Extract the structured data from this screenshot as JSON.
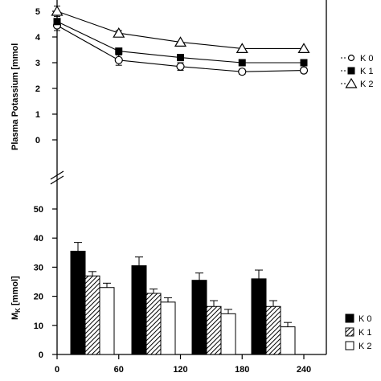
{
  "chart_data": [
    {
      "type": "line",
      "ylabel": "Plasma Potassium [mmol",
      "ylim": [
        0,
        5
      ],
      "yticks": [
        "0",
        "1",
        "2",
        "3",
        "4",
        "5"
      ],
      "x": [
        0,
        60,
        120,
        180,
        240
      ],
      "series": [
        {
          "name": "K 0",
          "marker": "circle-open",
          "values": [
            4.45,
            3.1,
            2.85,
            2.65,
            2.7
          ],
          "errors": [
            0.2,
            0.2,
            0.15,
            0.1,
            0.1
          ]
        },
        {
          "name": "K 1",
          "marker": "square-filled",
          "values": [
            4.6,
            3.45,
            3.2,
            3.0,
            3.0
          ],
          "errors": [
            0.0,
            0.0,
            0.0,
            0.0,
            0.0
          ]
        },
        {
          "name": "K 2",
          "marker": "triangle-open",
          "values": [
            5.0,
            4.15,
            3.8,
            3.55,
            3.55
          ],
          "errors": [
            0.2,
            0.1,
            0.0,
            0.0,
            0.0
          ]
        }
      ],
      "legend": "right"
    },
    {
      "type": "bar",
      "ylabel": "M",
      "ylabel_sub": "K",
      "ylabel_unit": " [mmol]",
      "ylim": [
        0,
        50
      ],
      "yticks": [
        "0",
        "10",
        "20",
        "30",
        "40",
        "50"
      ],
      "categories": [
        "0-60",
        "60-120",
        "120-180",
        "180-240"
      ],
      "series": [
        {
          "name": "K 0",
          "fill": "solid",
          "values": [
            35.5,
            30.5,
            25.5,
            26.0
          ],
          "errors": [
            3.0,
            3.0,
            2.5,
            3.0
          ]
        },
        {
          "name": "K 1",
          "fill": "hatched",
          "values": [
            27.0,
            21.0,
            16.5,
            16.5
          ],
          "errors": [
            1.5,
            1.5,
            2.0,
            2.0
          ]
        },
        {
          "name": "K 2",
          "fill": "open",
          "values": [
            23.0,
            18.0,
            14.0,
            9.5
          ],
          "errors": [
            1.5,
            1.5,
            1.5,
            1.5
          ]
        }
      ],
      "legend": "right"
    }
  ],
  "x_axis": {
    "ticks": [
      "0",
      "60",
      "120",
      "180",
      "240"
    ],
    "range": [
      0,
      240
    ]
  }
}
